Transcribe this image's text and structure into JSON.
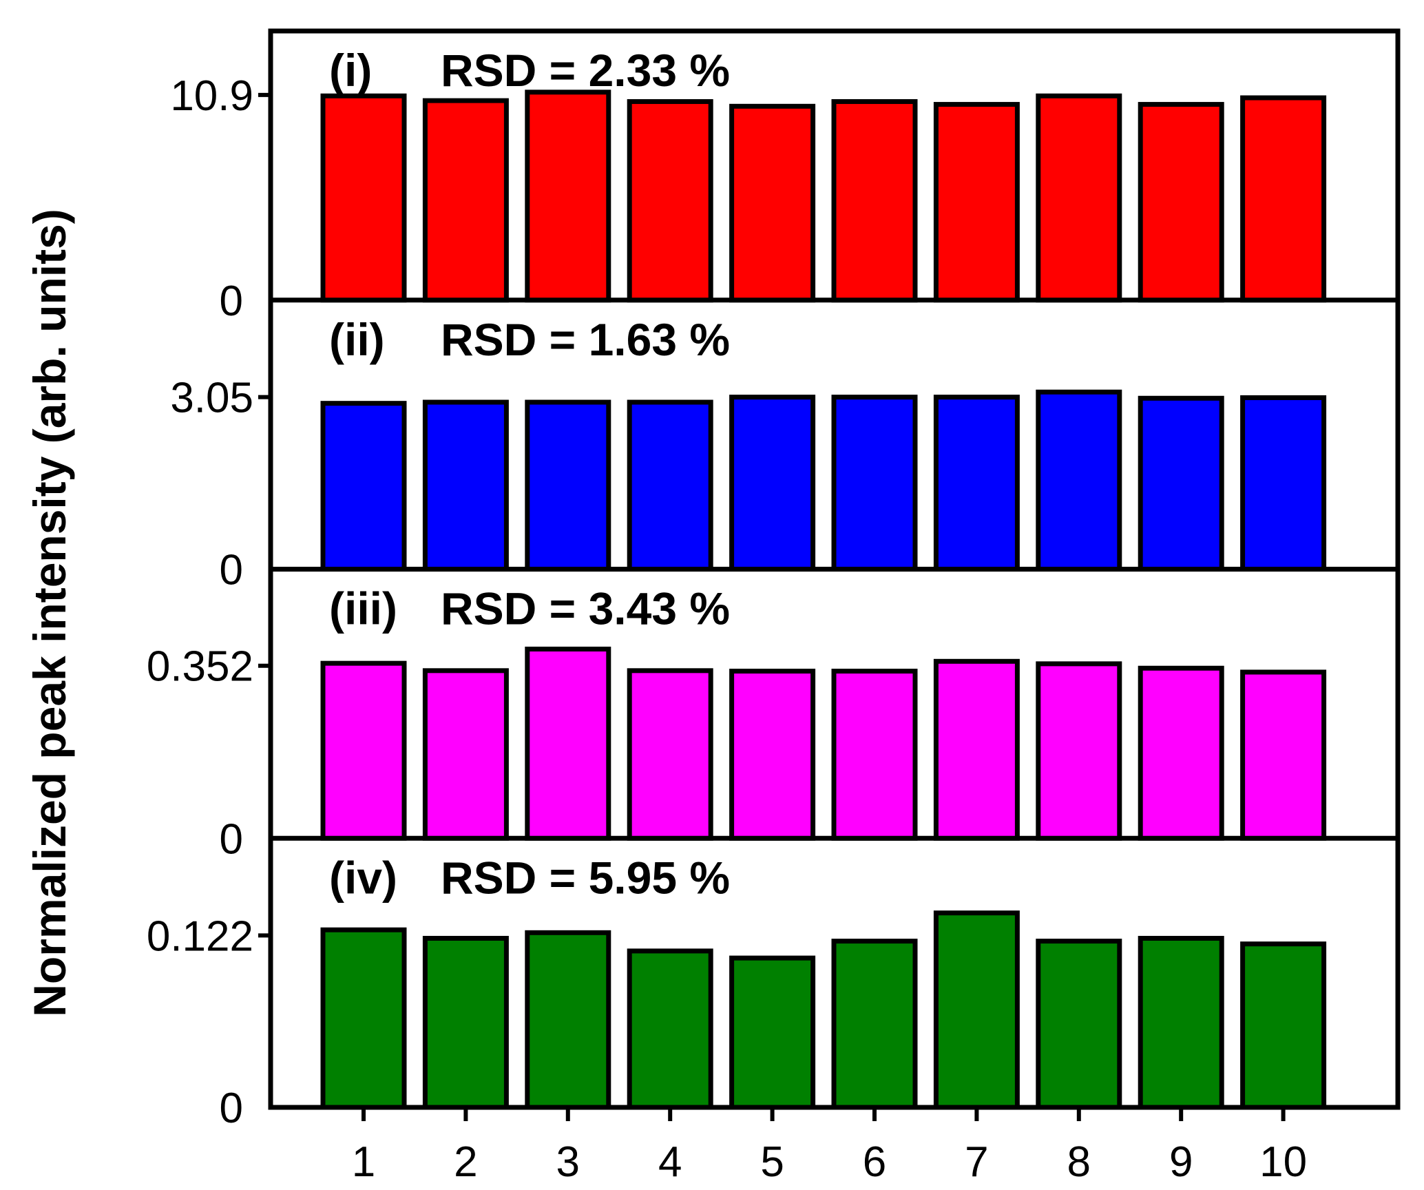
{
  "chart_data": {
    "type": "bar",
    "ylabel": "Normalized peak intensity (arb. units)",
    "xlabel": "",
    "categories": [
      "1",
      "2",
      "3",
      "4",
      "5",
      "6",
      "7",
      "8",
      "9",
      "10"
    ],
    "series": [
      {
        "tag": "(i)",
        "rsd_label": "RSD = 2.33 %",
        "color": "#ff0000",
        "yticks": [
          "0",
          "10.9"
        ],
        "ylim": [
          0,
          14.3
        ],
        "values": [
          10.85,
          10.6,
          11.05,
          10.55,
          10.3,
          10.55,
          10.4,
          10.85,
          10.4,
          10.75
        ]
      },
      {
        "tag": "(ii)",
        "rsd_label": "RSD = 1.63 %",
        "color": "#0000ff",
        "yticks": [
          "0",
          "3.05"
        ],
        "ylim": [
          0,
          4.77
        ],
        "values": [
          2.94,
          2.96,
          2.96,
          2.96,
          3.05,
          3.05,
          3.05,
          3.14,
          3.03,
          3.04
        ]
      },
      {
        "tag": "(iii)",
        "rsd_label": "RSD = 3.43 %",
        "color": "#ff00ff",
        "yticks": [
          "0",
          "0.352"
        ],
        "ylim": [
          0,
          0.549
        ],
        "values": [
          0.357,
          0.342,
          0.386,
          0.342,
          0.341,
          0.341,
          0.361,
          0.356,
          0.347,
          0.339
        ]
      },
      {
        "tag": "(iv)",
        "rsd_label": "RSD = 5.95 %",
        "color": "#008000",
        "yticks": [
          "0",
          "0.122"
        ],
        "ylim": [
          0,
          0.191
        ],
        "values": [
          0.126,
          0.12,
          0.124,
          0.111,
          0.106,
          0.118,
          0.138,
          0.118,
          0.12,
          0.116
        ]
      }
    ],
    "grid": false,
    "legend": "none"
  }
}
